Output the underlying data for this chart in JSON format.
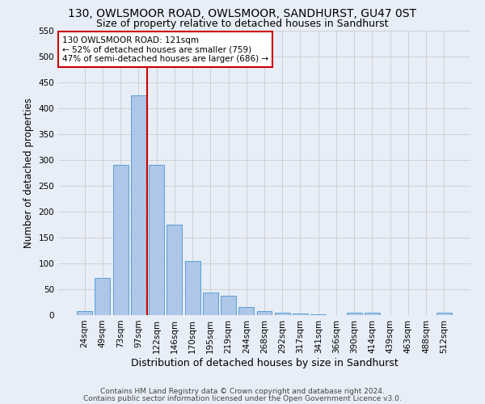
{
  "title1": "130, OWLSMOOR ROAD, OWLSMOOR, SANDHURST, GU47 0ST",
  "title2": "Size of property relative to detached houses in Sandhurst",
  "xlabel": "Distribution of detached houses by size in Sandhurst",
  "ylabel": "Number of detached properties",
  "categories": [
    "24sqm",
    "49sqm",
    "73sqm",
    "97sqm",
    "122sqm",
    "146sqm",
    "170sqm",
    "195sqm",
    "219sqm",
    "244sqm",
    "268sqm",
    "292sqm",
    "317sqm",
    "341sqm",
    "366sqm",
    "390sqm",
    "414sqm",
    "439sqm",
    "463sqm",
    "488sqm",
    "512sqm"
  ],
  "values": [
    8,
    72,
    290,
    425,
    290,
    175,
    105,
    44,
    38,
    16,
    8,
    5,
    3,
    2,
    0,
    4,
    4,
    0,
    0,
    0,
    4
  ],
  "bar_color": "#aec6e8",
  "bar_edge_color": "#5a9fd4",
  "vline_index": 4,
  "vline_color": "#cc0000",
  "annotation_text": "130 OWLSMOOR ROAD: 121sqm\n← 52% of detached houses are smaller (759)\n47% of semi-detached houses are larger (686) →",
  "annotation_box_color": "#ffffff",
  "annotation_box_edge": "#cc0000",
  "ylim": [
    0,
    550
  ],
  "yticks": [
    0,
    50,
    100,
    150,
    200,
    250,
    300,
    350,
    400,
    450,
    500,
    550
  ],
  "grid_color": "#cccccc",
  "bg_color": "#e8eef7",
  "footer1": "Contains HM Land Registry data © Crown copyright and database right 2024.",
  "footer2": "Contains public sector information licensed under the Open Government Licence v3.0.",
  "title1_fontsize": 10,
  "title2_fontsize": 9,
  "xlabel_fontsize": 9,
  "ylabel_fontsize": 8.5,
  "tick_fontsize": 7.5,
  "footer_fontsize": 6.5,
  "annotation_fontsize": 7.5
}
